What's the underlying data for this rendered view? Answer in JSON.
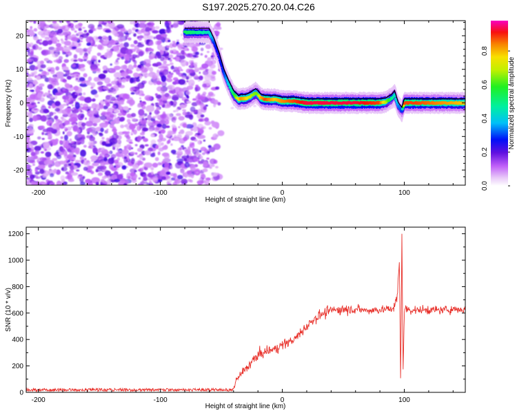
{
  "title": "S197.2025.270.20.04.C26",
  "colors": {
    "trace": "#e8302a",
    "background": "#ffffff",
    "axes": "#000000"
  },
  "chart_data": [
    {
      "type": "heatmap",
      "xlabel": "Height of straight line (km)",
      "ylabel": "Frequency (Hz)",
      "xlim": [
        -210,
        150
      ],
      "ylim": [
        -24.5,
        24.5
      ],
      "xticks": [
        -200,
        -100,
        0,
        100
      ],
      "yticks": [
        -20,
        -10,
        0,
        10,
        20
      ],
      "colorbar": {
        "label": "Normalized spectral amplitude",
        "range": [
          0.0,
          0.98
        ],
        "ticks": [
          0.0,
          0.2,
          0.4,
          0.6,
          0.8
        ]
      },
      "noise_region_km": [
        -210,
        -50
      ],
      "ridge": {
        "x": [
          -80,
          -70,
          -60,
          -56,
          -52,
          -48,
          -44,
          -40,
          -36,
          -34,
          -30,
          -26,
          -22,
          -20,
          -18,
          -14,
          -10,
          -6,
          0,
          10,
          20,
          40,
          60,
          80,
          85,
          90,
          92,
          95,
          98,
          100,
          110,
          130,
          150
        ],
        "y": [
          21.0,
          21.0,
          21.0,
          18.0,
          14.0,
          9.0,
          5.5,
          2.5,
          1.0,
          1.3,
          1.3,
          2.0,
          3.0,
          2.5,
          1.5,
          1.0,
          1.0,
          1.0,
          0.5,
          0.5,
          0.0,
          0.0,
          0.0,
          0.0,
          0.3,
          1.5,
          2.5,
          -1.0,
          -2.5,
          0.0,
          0.0,
          0.0,
          0.0
        ],
        "amplitude": [
          0.55,
          0.5,
          0.45,
          0.3,
          0.25,
          0.3,
          0.4,
          0.55,
          0.75,
          0.85,
          0.8,
          0.7,
          0.65,
          0.65,
          0.8,
          0.9,
          0.85,
          0.8,
          0.85,
          0.9,
          0.95,
          0.95,
          0.95,
          0.9,
          0.7,
          0.5,
          0.45,
          0.35,
          0.3,
          0.9,
          0.9,
          0.85,
          0.8
        ]
      }
    },
    {
      "type": "line",
      "xlabel": "Height of straight line (km)",
      "ylabel": "SNR (10 * v/v)",
      "xlim": [
        -210,
        150
      ],
      "ylim": [
        0,
        1250
      ],
      "xticks": [
        -200,
        -100,
        0,
        100
      ],
      "yticks": [
        0,
        200,
        400,
        600,
        800,
        1000,
        1200
      ],
      "series": [
        {
          "name": "SNR",
          "x": [
            -210,
            -150,
            -100,
            -50,
            -40,
            -38,
            -30,
            -25,
            -20,
            -15,
            -10,
            -5,
            0,
            5,
            10,
            15,
            20,
            25,
            30,
            40,
            50,
            60,
            70,
            80,
            90,
            94,
            96,
            97,
            98,
            99,
            100,
            102,
            110,
            120,
            130,
            140,
            150
          ],
          "y": [
            20,
            20,
            20,
            20,
            25,
            90,
            180,
            230,
            280,
            300,
            320,
            330,
            360,
            380,
            400,
            450,
            500,
            550,
            580,
            620,
            630,
            630,
            620,
            625,
            630,
            700,
            1000,
            60,
            1200,
            150,
            620,
            630,
            620,
            625,
            620,
            630,
            625
          ],
          "noise_amplitude": [
            12,
            12,
            12,
            12,
            12,
            35,
            55,
            60,
            60,
            60,
            55,
            55,
            55,
            55,
            55,
            60,
            60,
            60,
            60,
            60,
            65,
            55,
            50,
            50,
            50,
            60,
            0,
            0,
            0,
            0,
            60,
            55,
            50,
            50,
            50,
            50,
            50
          ]
        }
      ]
    }
  ]
}
